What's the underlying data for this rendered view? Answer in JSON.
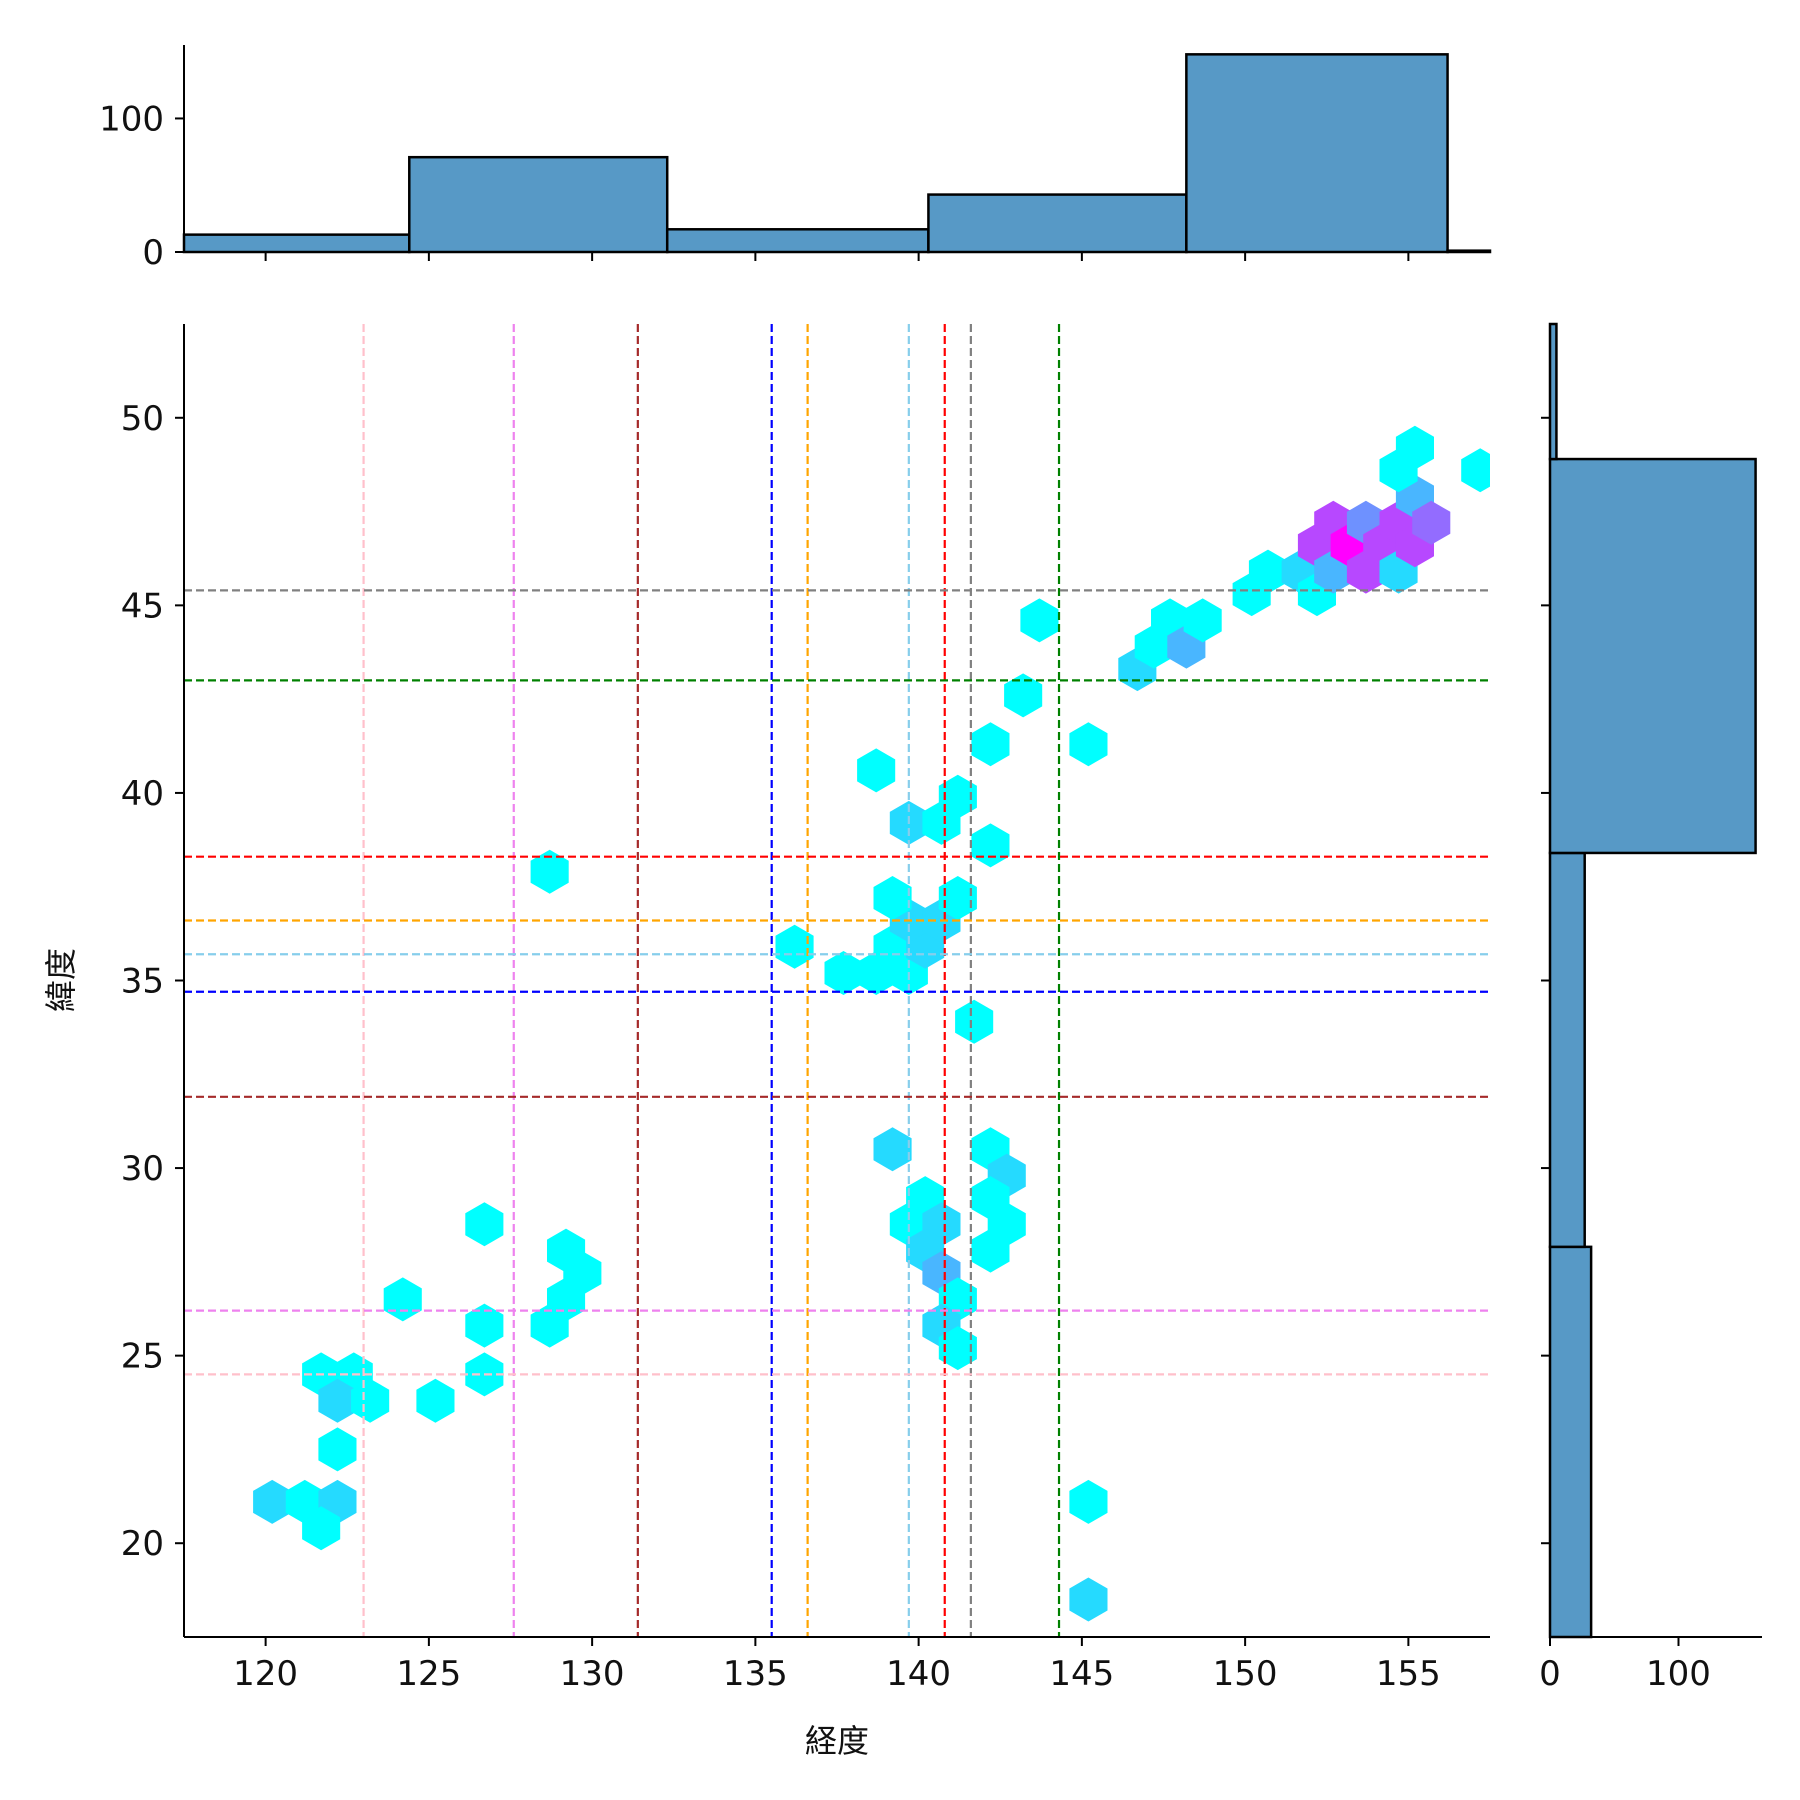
{
  "chart_data": {
    "type": "hexbin",
    "xlabel": "経度",
    "ylabel": "緯度",
    "xlim": [
      117.5,
      157.5
    ],
    "ylim": [
      17.5,
      52.5
    ],
    "xticks": [
      "120",
      "125",
      "130",
      "135",
      "140",
      "145",
      "150",
      "155"
    ],
    "yticks": [
      "20",
      "25",
      "30",
      "35",
      "40",
      "45",
      "50"
    ],
    "hexbins": [
      {
        "x": 120.2,
        "y": 21.1,
        "n": 2
      },
      {
        "x": 121.2,
        "y": 21.1,
        "n": 1
      },
      {
        "x": 122.2,
        "y": 21.1,
        "n": 2
      },
      {
        "x": 121.7,
        "y": 20.4,
        "n": 1
      },
      {
        "x": 122.2,
        "y": 22.5,
        "n": 1
      },
      {
        "x": 121.7,
        "y": 24.5,
        "n": 1
      },
      {
        "x": 122.7,
        "y": 24.5,
        "n": 1
      },
      {
        "x": 122.2,
        "y": 23.8,
        "n": 2
      },
      {
        "x": 123.2,
        "y": 23.8,
        "n": 1
      },
      {
        "x": 125.2,
        "y": 23.8,
        "n": 1
      },
      {
        "x": 124.2,
        "y": 26.5,
        "n": 1
      },
      {
        "x": 126.7,
        "y": 24.5,
        "n": 1
      },
      {
        "x": 126.7,
        "y": 25.8,
        "n": 1
      },
      {
        "x": 126.7,
        "y": 28.5,
        "n": 1
      },
      {
        "x": 128.7,
        "y": 25.8,
        "n": 1
      },
      {
        "x": 129.2,
        "y": 26.5,
        "n": 1
      },
      {
        "x": 129.7,
        "y": 27.2,
        "n": 1
      },
      {
        "x": 129.2,
        "y": 27.8,
        "n": 1
      },
      {
        "x": 128.7,
        "y": 37.9,
        "n": 1
      },
      {
        "x": 136.2,
        "y": 35.9,
        "n": 1
      },
      {
        "x": 137.7,
        "y": 35.2,
        "n": 1
      },
      {
        "x": 138.7,
        "y": 35.2,
        "n": 1
      },
      {
        "x": 139.7,
        "y": 35.2,
        "n": 1
      },
      {
        "x": 139.2,
        "y": 35.9,
        "n": 1
      },
      {
        "x": 140.2,
        "y": 35.9,
        "n": 2
      },
      {
        "x": 139.7,
        "y": 36.6,
        "n": 2
      },
      {
        "x": 140.7,
        "y": 36.6,
        "n": 2
      },
      {
        "x": 139.2,
        "y": 37.2,
        "n": 1
      },
      {
        "x": 141.2,
        "y": 37.2,
        "n": 1
      },
      {
        "x": 139.7,
        "y": 39.2,
        "n": 2
      },
      {
        "x": 140.7,
        "y": 39.2,
        "n": 1
      },
      {
        "x": 141.2,
        "y": 39.9,
        "n": 1
      },
      {
        "x": 138.7,
        "y": 40.6,
        "n": 1
      },
      {
        "x": 142.2,
        "y": 38.6,
        "n": 1
      },
      {
        "x": 142.2,
        "y": 41.3,
        "n": 1
      },
      {
        "x": 143.2,
        "y": 42.6,
        "n": 1
      },
      {
        "x": 143.7,
        "y": 44.6,
        "n": 1
      },
      {
        "x": 145.2,
        "y": 41.3,
        "n": 1
      },
      {
        "x": 141.7,
        "y": 33.9,
        "n": 1
      },
      {
        "x": 139.2,
        "y": 30.5,
        "n": 2
      },
      {
        "x": 142.2,
        "y": 30.5,
        "n": 1
      },
      {
        "x": 142.7,
        "y": 29.8,
        "n": 2
      },
      {
        "x": 140.2,
        "y": 29.2,
        "n": 1
      },
      {
        "x": 142.2,
        "y": 29.2,
        "n": 1
      },
      {
        "x": 139.7,
        "y": 28.5,
        "n": 1
      },
      {
        "x": 140.7,
        "y": 28.5,
        "n": 2
      },
      {
        "x": 142.7,
        "y": 28.5,
        "n": 1
      },
      {
        "x": 140.2,
        "y": 27.8,
        "n": 2
      },
      {
        "x": 142.2,
        "y": 27.8,
        "n": 1
      },
      {
        "x": 140.7,
        "y": 27.2,
        "n": 3
      },
      {
        "x": 141.2,
        "y": 26.5,
        "n": 1
      },
      {
        "x": 140.7,
        "y": 25.8,
        "n": 2
      },
      {
        "x": 141.2,
        "y": 25.2,
        "n": 1
      },
      {
        "x": 145.2,
        "y": 21.1,
        "n": 1
      },
      {
        "x": 145.2,
        "y": 18.5,
        "n": 2
      },
      {
        "x": 146.7,
        "y": 43.3,
        "n": 2
      },
      {
        "x": 147.2,
        "y": 43.9,
        "n": 1
      },
      {
        "x": 147.7,
        "y": 44.6,
        "n": 1
      },
      {
        "x": 148.2,
        "y": 43.9,
        "n": 3
      },
      {
        "x": 148.7,
        "y": 44.6,
        "n": 1
      },
      {
        "x": 150.2,
        "y": 45.3,
        "n": 1
      },
      {
        "x": 150.7,
        "y": 45.9,
        "n": 1
      },
      {
        "x": 151.7,
        "y": 45.9,
        "n": 2
      },
      {
        "x": 152.2,
        "y": 45.3,
        "n": 1
      },
      {
        "x": 152.2,
        "y": 46.6,
        "n": 6
      },
      {
        "x": 152.7,
        "y": 45.9,
        "n": 3
      },
      {
        "x": 152.7,
        "y": 47.2,
        "n": 6
      },
      {
        "x": 153.2,
        "y": 46.6,
        "n": 9
      },
      {
        "x": 153.7,
        "y": 45.9,
        "n": 6
      },
      {
        "x": 153.7,
        "y": 47.2,
        "n": 4
      },
      {
        "x": 154.2,
        "y": 46.6,
        "n": 6
      },
      {
        "x": 154.7,
        "y": 45.9,
        "n": 2
      },
      {
        "x": 154.7,
        "y": 47.2,
        "n": 6
      },
      {
        "x": 155.2,
        "y": 46.6,
        "n": 6
      },
      {
        "x": 155.2,
        "y": 47.9,
        "n": 3
      },
      {
        "x": 155.7,
        "y": 47.2,
        "n": 5
      },
      {
        "x": 154.7,
        "y": 48.6,
        "n": 1
      },
      {
        "x": 155.2,
        "y": 49.2,
        "n": 1
      },
      {
        "x": 157.2,
        "y": 48.6,
        "n": 1
      }
    ],
    "vlines": [
      {
        "x": 123.0,
        "color": "#ffc0cb"
      },
      {
        "x": 127.6,
        "color": "#ee82ee"
      },
      {
        "x": 131.4,
        "color": "#a52a2a"
      },
      {
        "x": 135.5,
        "color": "#0000ff"
      },
      {
        "x": 136.6,
        "color": "#ffa500"
      },
      {
        "x": 139.7,
        "color": "#87ceeb"
      },
      {
        "x": 140.8,
        "color": "#ff0000"
      },
      {
        "x": 141.6,
        "color": "#808080"
      },
      {
        "x": 144.3,
        "color": "#008000"
      }
    ],
    "hlines": [
      {
        "y": 45.4,
        "color": "#808080"
      },
      {
        "y": 43.0,
        "color": "#008000"
      },
      {
        "y": 38.3,
        "color": "#ff0000"
      },
      {
        "y": 36.6,
        "color": "#ffa500"
      },
      {
        "y": 35.7,
        "color": "#87ceeb"
      },
      {
        "y": 34.7,
        "color": "#0000ff"
      },
      {
        "y": 31.9,
        "color": "#a52a2a"
      },
      {
        "y": 26.2,
        "color": "#ee82ee"
      },
      {
        "y": 24.5,
        "color": "#ffc0cb"
      }
    ],
    "top_hist": {
      "yticks": [
        "0",
        "100"
      ],
      "ylim": [
        0,
        155
      ],
      "bins": [
        {
          "x0": 117.5,
          "x1": 124.4,
          "count": 13
        },
        {
          "x0": 124.4,
          "x1": 132.3,
          "count": 71
        },
        {
          "x0": 132.3,
          "x1": 140.3,
          "count": 17
        },
        {
          "x0": 140.3,
          "x1": 148.2,
          "count": 43
        },
        {
          "x0": 148.2,
          "x1": 156.2,
          "count": 148
        },
        {
          "x0": 156.2,
          "x1": 157.5,
          "count": 1
        }
      ]
    },
    "right_hist": {
      "xticks": [
        "0",
        "100"
      ],
      "xlim": [
        0,
        165
      ],
      "bins": [
        {
          "y0": 17.5,
          "y1": 27.9,
          "count": 32
        },
        {
          "y0": 27.9,
          "y1": 38.4,
          "count": 27
        },
        {
          "y0": 38.4,
          "y1": 48.9,
          "count": 160
        },
        {
          "y0": 48.9,
          "y1": 52.5,
          "count": 5
        }
      ]
    },
    "colors": {
      "hist_fill": "#5799c6",
      "hex_low": "#00ffff",
      "hex_high": "#ff00ff"
    }
  }
}
